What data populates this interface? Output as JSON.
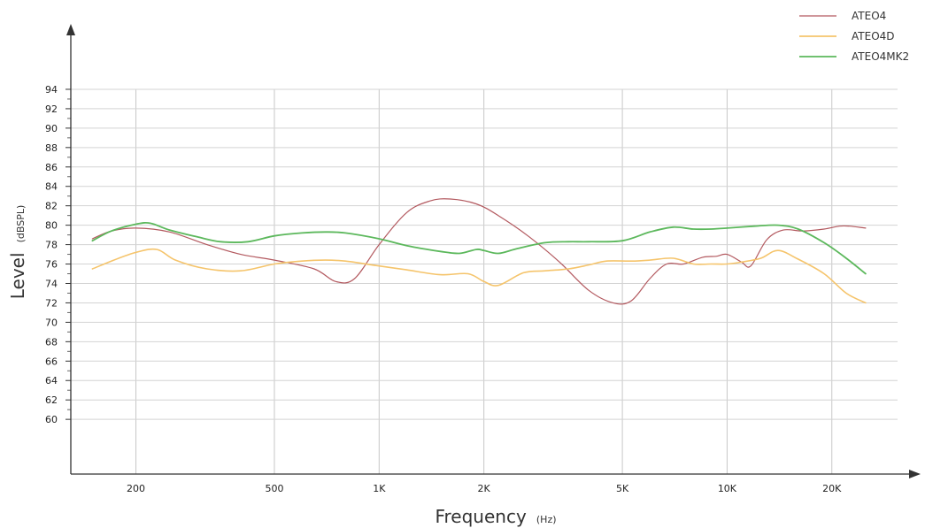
{
  "chart_data": {
    "type": "line",
    "xlabel": "Frequency",
    "xunit": "(Hz)",
    "ylabel": "Level",
    "yunit": "(dBSPL)",
    "x_scale": "log",
    "xlim": [
      130,
      32000
    ],
    "ylim": [
      54,
      95
    ],
    "y_ticks": [
      60,
      62,
      64,
      66,
      68,
      70,
      72,
      74,
      76,
      78,
      80,
      82,
      84,
      86,
      88,
      90,
      92,
      94
    ],
    "x_ticks": [
      {
        "value": 200,
        "label": "200"
      },
      {
        "value": 500,
        "label": "500"
      },
      {
        "value": 1000,
        "label": "1K"
      },
      {
        "value": 2000,
        "label": "2K"
      },
      {
        "value": 5000,
        "label": "5K"
      },
      {
        "value": 10000,
        "label": "10K"
      },
      {
        "value": 20000,
        "label": "20K"
      }
    ],
    "grid": true,
    "legend_position": "top-right",
    "series": [
      {
        "name": "ATEO4",
        "color": "#b3595f",
        "points": [
          [
            150,
            78.6
          ],
          [
            170,
            79.4
          ],
          [
            200,
            79.7
          ],
          [
            250,
            79.3
          ],
          [
            320,
            78
          ],
          [
            400,
            77
          ],
          [
            500,
            76.4
          ],
          [
            650,
            75.5
          ],
          [
            750,
            74.2
          ],
          [
            850,
            74.5
          ],
          [
            1000,
            78
          ],
          [
            1200,
            81.3
          ],
          [
            1400,
            82.5
          ],
          [
            1600,
            82.7
          ],
          [
            1900,
            82.2
          ],
          [
            2200,
            81
          ],
          [
            2700,
            78.8
          ],
          [
            3300,
            76.2
          ],
          [
            4000,
            73.3
          ],
          [
            4700,
            72
          ],
          [
            5300,
            72.2
          ],
          [
            6000,
            74.5
          ],
          [
            6700,
            76
          ],
          [
            7500,
            76
          ],
          [
            8500,
            76.7
          ],
          [
            9300,
            76.8
          ],
          [
            10000,
            77
          ],
          [
            11000,
            76.2
          ],
          [
            11700,
            75.8
          ],
          [
            13000,
            78.5
          ],
          [
            14500,
            79.5
          ],
          [
            16500,
            79.4
          ],
          [
            19000,
            79.6
          ],
          [
            21000,
            79.9
          ],
          [
            22500,
            79.9
          ],
          [
            25000,
            79.7
          ]
        ]
      },
      {
        "name": "ATEO4D",
        "color": "#f5c46b",
        "points": [
          [
            150,
            75.5
          ],
          [
            170,
            76.3
          ],
          [
            200,
            77.2
          ],
          [
            230,
            77.5
          ],
          [
            260,
            76.4
          ],
          [
            320,
            75.5
          ],
          [
            400,
            75.3
          ],
          [
            500,
            76
          ],
          [
            600,
            76.3
          ],
          [
            700,
            76.4
          ],
          [
            800,
            76.3
          ],
          [
            1000,
            75.8
          ],
          [
            1200,
            75.4
          ],
          [
            1500,
            74.9
          ],
          [
            1800,
            75
          ],
          [
            2000,
            74.2
          ],
          [
            2200,
            73.8
          ],
          [
            2600,
            75.1
          ],
          [
            3000,
            75.3
          ],
          [
            3500,
            75.5
          ],
          [
            4000,
            75.9
          ],
          [
            4500,
            76.3
          ],
          [
            5300,
            76.3
          ],
          [
            6000,
            76.4
          ],
          [
            7000,
            76.6
          ],
          [
            8000,
            76
          ],
          [
            9000,
            76
          ],
          [
            10000,
            76
          ],
          [
            11000,
            76.2
          ],
          [
            12500,
            76.6
          ],
          [
            14000,
            77.4
          ],
          [
            16000,
            76.5
          ],
          [
            19000,
            75
          ],
          [
            22000,
            73
          ],
          [
            25000,
            72
          ]
        ]
      },
      {
        "name": "ATEO4MK2",
        "color": "#5cb85c",
        "points": [
          [
            150,
            78.4
          ],
          [
            170,
            79.4
          ],
          [
            200,
            80.1
          ],
          [
            220,
            80.2
          ],
          [
            250,
            79.5
          ],
          [
            300,
            78.8
          ],
          [
            350,
            78.3
          ],
          [
            420,
            78.3
          ],
          [
            500,
            78.9
          ],
          [
            600,
            79.2
          ],
          [
            700,
            79.3
          ],
          [
            800,
            79.2
          ],
          [
            1000,
            78.6
          ],
          [
            1200,
            77.9
          ],
          [
            1500,
            77.3
          ],
          [
            1700,
            77.1
          ],
          [
            1900,
            77.5
          ],
          [
            2000,
            77.4
          ],
          [
            2200,
            77.1
          ],
          [
            2500,
            77.6
          ],
          [
            3000,
            78.2
          ],
          [
            3500,
            78.3
          ],
          [
            4000,
            78.3
          ],
          [
            5000,
            78.4
          ],
          [
            6000,
            79.3
          ],
          [
            7000,
            79.8
          ],
          [
            8000,
            79.6
          ],
          [
            9000,
            79.6
          ],
          [
            10000,
            79.7
          ],
          [
            12000,
            79.9
          ],
          [
            14000,
            80
          ],
          [
            16000,
            79.6
          ],
          [
            19000,
            78.2
          ],
          [
            22000,
            76.6
          ],
          [
            25000,
            75
          ]
        ]
      }
    ]
  }
}
